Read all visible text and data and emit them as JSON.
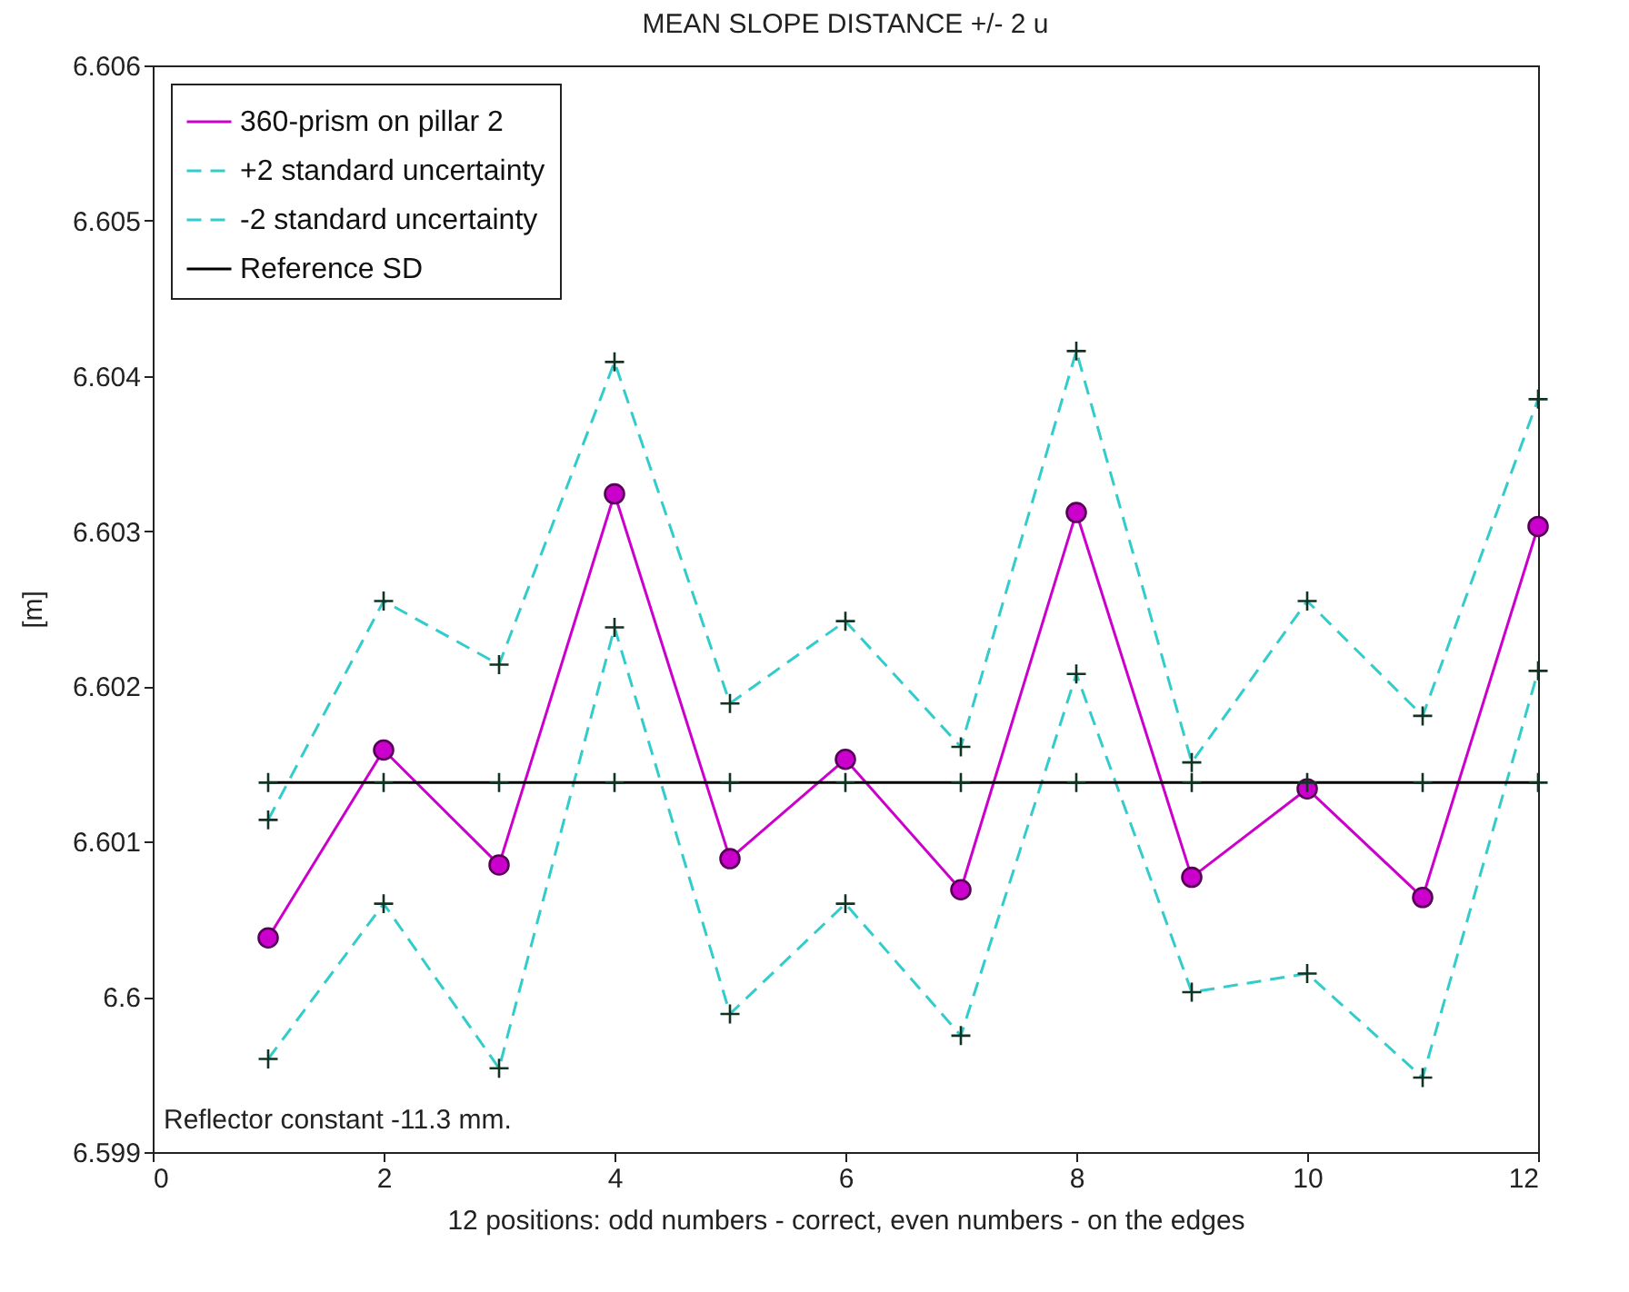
{
  "chart_data": {
    "type": "line",
    "title": "MEAN SLOPE DISTANCE +/- 2 u",
    "xlabel": "12 positions: odd numbers - correct, even numbers - on the edges",
    "ylabel": "[m]",
    "x": [
      1,
      2,
      3,
      4,
      5,
      6,
      7,
      8,
      9,
      10,
      11,
      12
    ],
    "series": [
      {
        "name": "360-prism on pillar 2",
        "color": "#cc00cc",
        "marker": "circle",
        "line_style": "solid",
        "values": [
          6.60038,
          6.60159,
          6.60085,
          6.60324,
          6.60089,
          6.60153,
          6.60069,
          6.60312,
          6.60077,
          6.60134,
          6.60064,
          6.60303
        ]
      },
      {
        "name": "+2 standard uncertainty",
        "color": "#33cccc",
        "marker": "cross",
        "line_style": "dashed",
        "values": [
          6.60114,
          6.60255,
          6.60214,
          6.60409,
          6.60189,
          6.60242,
          6.60161,
          6.60416,
          6.60151,
          6.60255,
          6.60181,
          6.60385
        ]
      },
      {
        "name": "-2 standard uncertainty",
        "color": "#33cccc",
        "marker": "cross",
        "line_style": "dashed",
        "values": [
          6.5996,
          6.6006,
          6.59954,
          6.60238,
          6.59989,
          6.6006,
          6.59975,
          6.60208,
          6.60003,
          6.60015,
          6.59948,
          6.6021
        ]
      },
      {
        "name": "Reference SD",
        "color": "#000000",
        "marker": "cross",
        "line_style": "solid",
        "values": [
          6.60138,
          6.60138,
          6.60138,
          6.60138,
          6.60138,
          6.60138,
          6.60138,
          6.60138,
          6.60138,
          6.60138,
          6.60138,
          6.60138
        ]
      }
    ],
    "xlim": [
      0,
      12
    ],
    "xticks": [
      0,
      2,
      4,
      6,
      8,
      10,
      12
    ],
    "ylim": [
      6.599,
      6.606
    ],
    "yticks": [
      6.599,
      6.6,
      6.601,
      6.602,
      6.603,
      6.604,
      6.605,
      6.606
    ],
    "grid": false,
    "legend": "top left",
    "annotations": [
      "Reflector constant  -11.3 mm."
    ]
  }
}
